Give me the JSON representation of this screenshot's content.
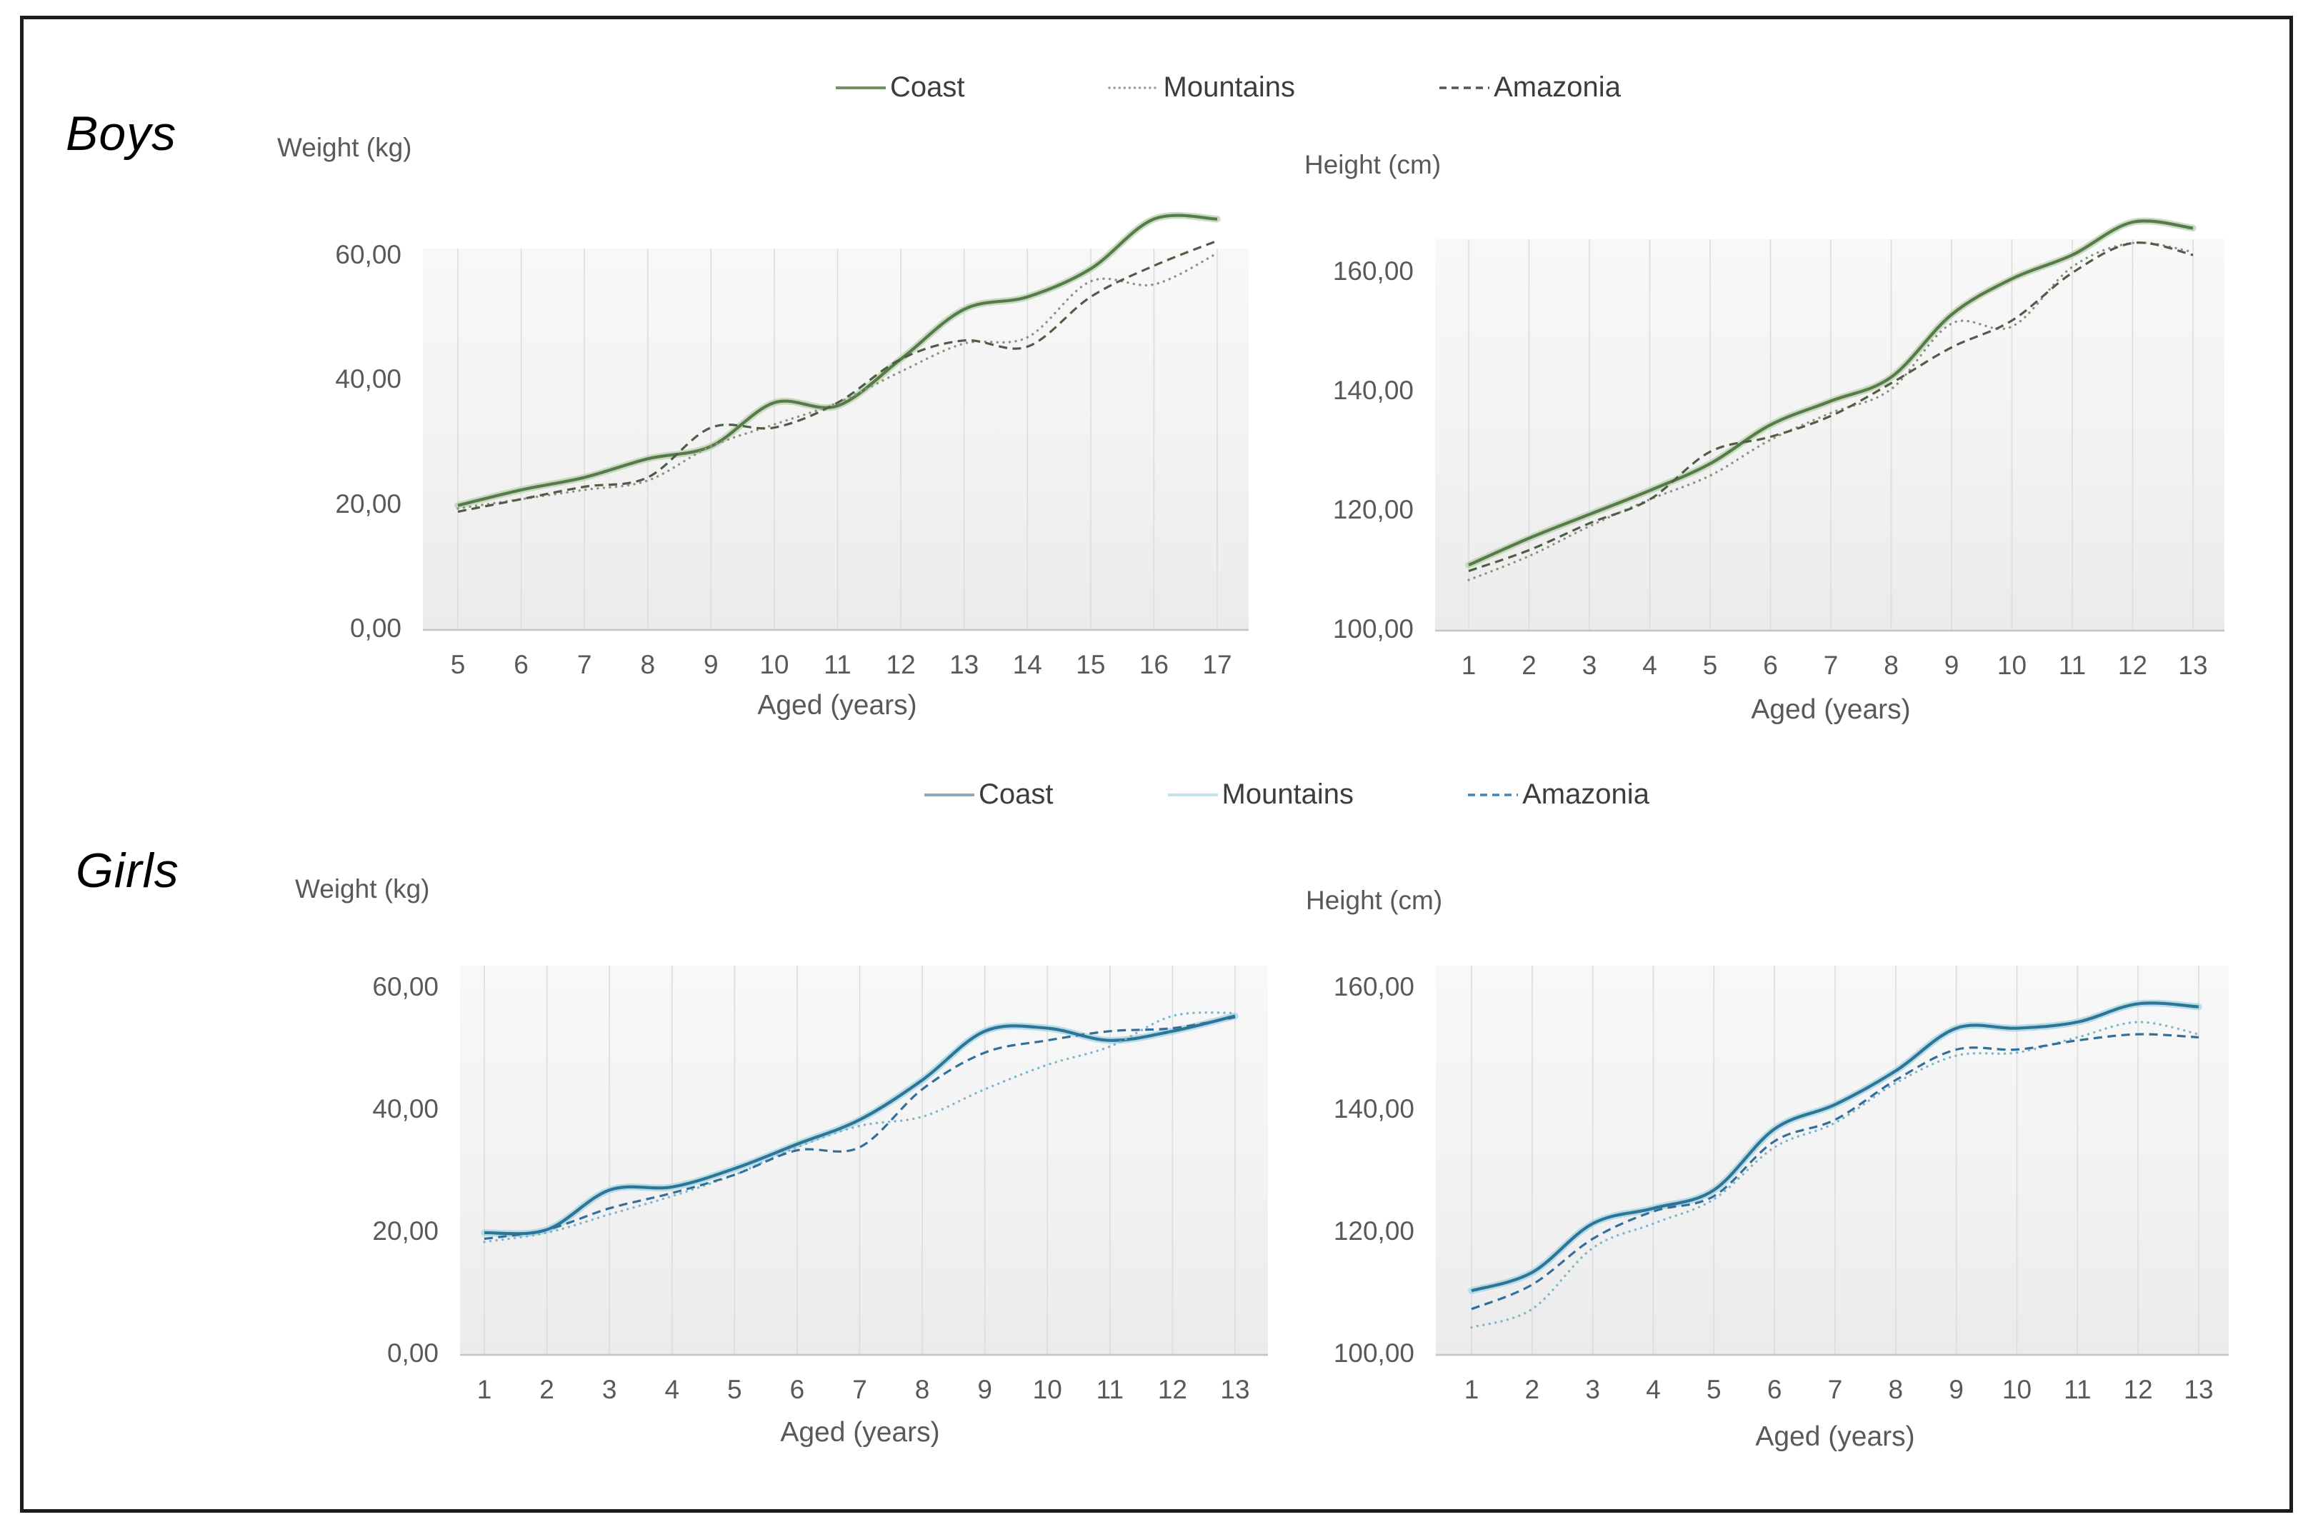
{
  "page": {
    "background": "#ffffff",
    "border_color": "#1c1c1c"
  },
  "sections": [
    {
      "label": "Boys",
      "accent_color": "#567a4b",
      "legend": [
        {
          "label": "Coast",
          "style": "solid",
          "color": "#567a4b",
          "glow": "#bcd3ae",
          "swatch_color": "#6f9360"
        },
        {
          "label": "Mountains",
          "style": "dotted",
          "color": "#8b9484",
          "swatch_color": "#9aa295"
        },
        {
          "label": "Amazonia",
          "style": "dashed",
          "color": "#4f5d47",
          "swatch_color": "#4f5d47"
        }
      ]
    },
    {
      "label": "Girls",
      "accent_color": "#2e7496",
      "legend": [
        {
          "label": "Coast",
          "style": "solid",
          "color": "#2e7496",
          "glow": "#a6d7e4",
          "swatch_color": "#8fa8bc"
        },
        {
          "label": "Mountains",
          "style": "dotted",
          "color": "#7fb6cc",
          "swatch_style": "solid",
          "swatch_color": "#c5dfeb"
        },
        {
          "label": "Amazonia",
          "style": "dashed",
          "color": "#336f99",
          "swatch_color": "#3f86ba"
        }
      ]
    }
  ],
  "chart_data": [
    {
      "id": "boys-weight",
      "section": "Boys",
      "type": "line",
      "title": "Weight (kg)",
      "xlabel": "Aged (years)",
      "grid": "vertical-gridlines-only",
      "legend_position": "top-center",
      "x": [
        5,
        6,
        7,
        8,
        9,
        10,
        11,
        12,
        13,
        14,
        15,
        16,
        17
      ],
      "xtick_labels": [
        "5",
        "6",
        "7",
        "8",
        "9",
        "10",
        "11",
        "12",
        "13",
        "14",
        "15",
        "16",
        "17"
      ],
      "ylim": [
        0,
        68
      ],
      "yticks": [
        0,
        20,
        40,
        60
      ],
      "ytick_labels": [
        "0,00",
        "20,00",
        "40,00",
        "60,00"
      ],
      "series": [
        {
          "name": "Coast",
          "values": [
            20,
            22.5,
            24.5,
            27.5,
            29.5,
            36.5,
            36,
            43.5,
            51.5,
            53.5,
            58,
            66,
            66
          ]
        },
        {
          "name": "Mountains",
          "values": [
            19.5,
            21,
            22.5,
            24,
            29.5,
            33,
            36.5,
            41.5,
            46,
            47,
            56,
            55.5,
            60.5
          ]
        },
        {
          "name": "Amazonia",
          "values": [
            19,
            21,
            23,
            24.5,
            32.5,
            32.5,
            36.5,
            43.5,
            46.5,
            45.5,
            53.5,
            58.5,
            62.5
          ]
        }
      ]
    },
    {
      "id": "boys-height",
      "section": "Boys",
      "type": "line",
      "title": "Height (cm)",
      "xlabel": "Aged (years)",
      "grid": "vertical-gridlines-only",
      "legend_position": "top-center",
      "x": [
        1,
        2,
        3,
        4,
        5,
        6,
        7,
        8,
        9,
        10,
        11,
        12,
        13
      ],
      "xtick_labels": [
        "1",
        "2",
        "3",
        "4",
        "5",
        "6",
        "7",
        "8",
        "9",
        "10",
        "11",
        "12",
        "13"
      ],
      "ylim": [
        100,
        172
      ],
      "yticks": [
        100,
        120,
        140,
        160
      ],
      "ytick_labels": [
        "100,00",
        "120,00",
        "140,00",
        "160,00"
      ],
      "series": [
        {
          "name": "Coast",
          "values": [
            111,
            115.5,
            119.5,
            123.5,
            128,
            134.5,
            138.5,
            142.5,
            153,
            159,
            163,
            168.5,
            167.5
          ]
        },
        {
          "name": "Mountains",
          "values": [
            108.5,
            112.5,
            117.5,
            122,
            126,
            132,
            136.5,
            140.5,
            151.5,
            151,
            161,
            165,
            163.5
          ]
        },
        {
          "name": "Amazonia",
          "values": [
            110,
            113.5,
            118,
            122,
            130,
            132.5,
            136,
            141.5,
            147.5,
            152,
            160,
            165,
            163
          ]
        }
      ]
    },
    {
      "id": "girls-weight",
      "section": "Girls",
      "type": "line",
      "title": "Weight (kg)",
      "xlabel": "Aged (years)",
      "grid": "vertical-gridlines-only",
      "legend_position": "top-center",
      "x": [
        1,
        2,
        3,
        4,
        5,
        6,
        7,
        8,
        9,
        10,
        11,
        12,
        13
      ],
      "xtick_labels": [
        "1",
        "2",
        "3",
        "4",
        "5",
        "6",
        "7",
        "8",
        "9",
        "10",
        "11",
        "12",
        "13"
      ],
      "ylim": [
        0,
        64
      ],
      "yticks": [
        0,
        20,
        40,
        60
      ],
      "ytick_labels": [
        "0,00",
        "20,00",
        "40,00",
        "60,00"
      ],
      "series": [
        {
          "name": "Coast",
          "values": [
            20,
            20.5,
            27,
            27.5,
            30.5,
            34.5,
            38.5,
            45,
            53,
            53.5,
            51.5,
            53,
            55.5
          ]
        },
        {
          "name": "Mountains",
          "values": [
            18.5,
            20,
            23,
            26,
            29.5,
            34,
            37.5,
            39,
            43.5,
            47.5,
            50.5,
            55.5,
            56
          ]
        },
        {
          "name": "Amazonia",
          "values": [
            19,
            20.5,
            24,
            26.5,
            29.5,
            33.5,
            34,
            43.5,
            49.5,
            51.5,
            53,
            53.5,
            55.3
          ]
        }
      ]
    },
    {
      "id": "girls-height",
      "section": "Girls",
      "type": "line",
      "title": "Height (cm)",
      "xlabel": "Aged (years)",
      "grid": "vertical-gridlines-only",
      "legend_position": "top-center",
      "x": [
        1,
        2,
        3,
        4,
        5,
        6,
        7,
        8,
        9,
        10,
        11,
        12,
        13
      ],
      "xtick_labels": [
        "1",
        "2",
        "3",
        "4",
        "5",
        "6",
        "7",
        "8",
        "9",
        "10",
        "11",
        "12",
        "13"
      ],
      "ylim": [
        100,
        164
      ],
      "yticks": [
        100,
        120,
        140,
        160
      ],
      "ytick_labels": [
        "100,00",
        "120,00",
        "140,00",
        "160,00"
      ],
      "series": [
        {
          "name": "Coast",
          "values": [
            110.5,
            113.5,
            121.5,
            124,
            127,
            137,
            141,
            146.5,
            153.5,
            153.5,
            154.5,
            157.5,
            157
          ]
        },
        {
          "name": "Mountains",
          "values": [
            104.5,
            107.5,
            117.5,
            121.5,
            125.5,
            134,
            138,
            144.5,
            149,
            149.5,
            152,
            154.5,
            152.5
          ]
        },
        {
          "name": "Amazonia",
          "values": [
            107.5,
            111.5,
            119,
            123.5,
            126,
            135,
            138.5,
            145,
            150,
            150,
            151.5,
            152.5,
            152
          ]
        }
      ]
    }
  ]
}
